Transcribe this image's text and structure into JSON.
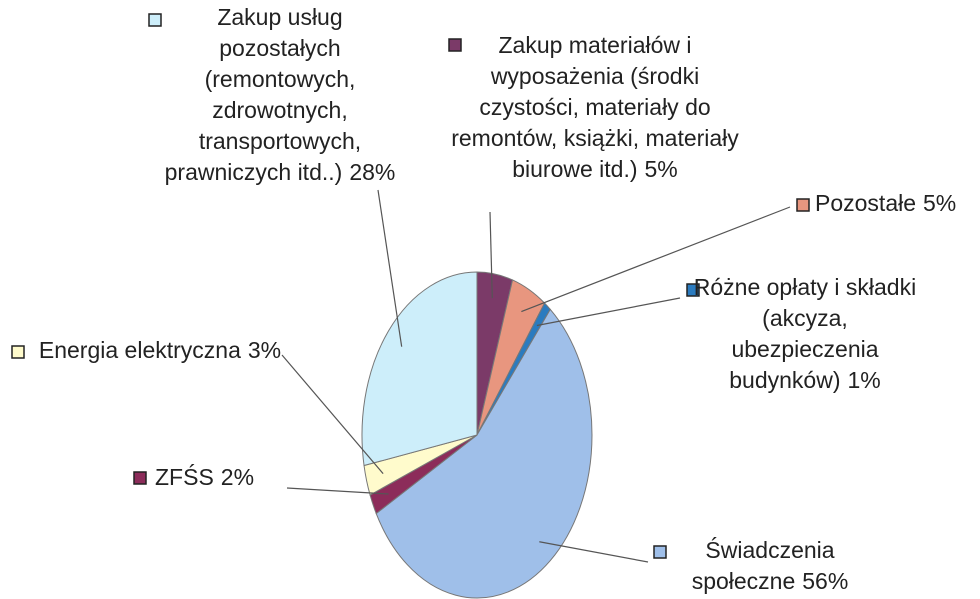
{
  "chart_data": {
    "type": "pie",
    "categories": [
      "Zakup materiałów i wyposażenia (środki czystości, materiały do remontów, książki, materiały biurowe itd.)",
      "Pozostałe",
      "Różne opłaty i składki (akcyza, ubezpieczenia budynków)",
      "Świadczenia społeczne",
      "ZFŚS",
      "Energia elektryczna",
      "Zakup usług pozostałych (remontowych, zdrowotnych, transportowych, prawniczych itd..)"
    ],
    "values": [
      5,
      5,
      1,
      56,
      2,
      3,
      28
    ],
    "value_labels": [
      "5%",
      "5%",
      "1%",
      "56%",
      "2%",
      "3%",
      "28%"
    ],
    "colors": [
      "#7b3a68",
      "#e8967f",
      "#2b7bbf",
      "#9fbfe9",
      "#8c2c5a",
      "#fffbcc",
      "#cdeefa"
    ]
  }
}
